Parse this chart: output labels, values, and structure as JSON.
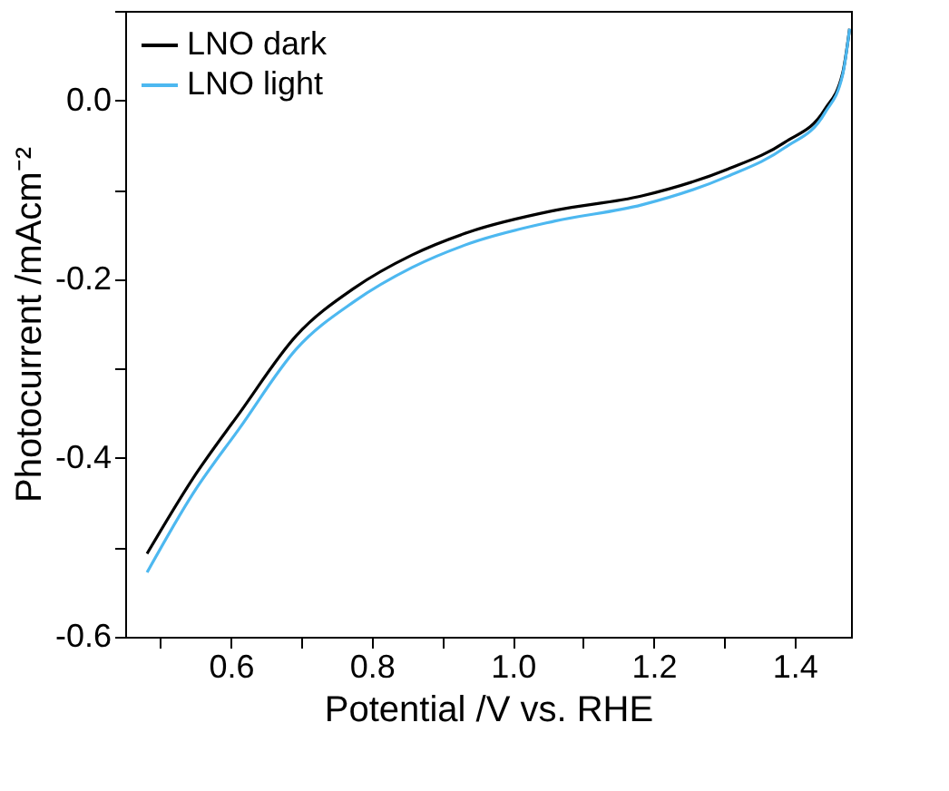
{
  "chart_data": {
    "type": "line",
    "xlabel": "Potential /V vs. RHE",
    "ylabel": "Photocurrent /mAcm⁻²",
    "x": [
      0.481,
      0.546,
      0.612,
      0.693,
      0.775,
      0.857,
      0.939,
      1.06,
      1.183,
      1.305,
      1.386,
      1.443,
      1.468,
      1.478
    ],
    "series": [
      {
        "name": "LNO dark",
        "color": "#000000",
        "values": [
          -0.507,
          -0.423,
          -0.35,
          -0.263,
          -0.21,
          -0.173,
          -0.147,
          -0.123,
          -0.107,
          -0.077,
          -0.047,
          -0.01,
          0.03,
          0.08
        ]
      },
      {
        "name": "LNO light",
        "color": "#4db8f0",
        "values": [
          -0.528,
          -0.44,
          -0.367,
          -0.278,
          -0.225,
          -0.187,
          -0.16,
          -0.135,
          -0.117,
          -0.085,
          -0.053,
          -0.014,
          0.028,
          0.08
        ]
      }
    ],
    "xlim": [
      0.45,
      1.48
    ],
    "ylim": [
      -0.6,
      0.1
    ],
    "xticks": [
      {
        "value": 0.5,
        "label": null
      },
      0.6,
      {
        "value": 0.7,
        "label": null
      },
      0.8,
      {
        "value": 0.9,
        "label": null
      },
      {
        "value": 1.0,
        "label": "1.0"
      },
      {
        "value": 1.1,
        "label": null
      },
      1.2,
      {
        "value": 1.3,
        "label": null
      },
      1.4
    ],
    "yticks": [
      -0.6,
      {
        "value": -0.5,
        "label": null
      },
      -0.4,
      {
        "value": -0.3,
        "label": null
      },
      -0.2,
      {
        "value": -0.1,
        "label": null
      },
      {
        "value": 0,
        "label": "0.0"
      },
      {
        "value": 0.1,
        "label": null
      }
    ],
    "legend": "top left",
    "grid": false,
    "line_style": "solid",
    "marker": "none"
  }
}
